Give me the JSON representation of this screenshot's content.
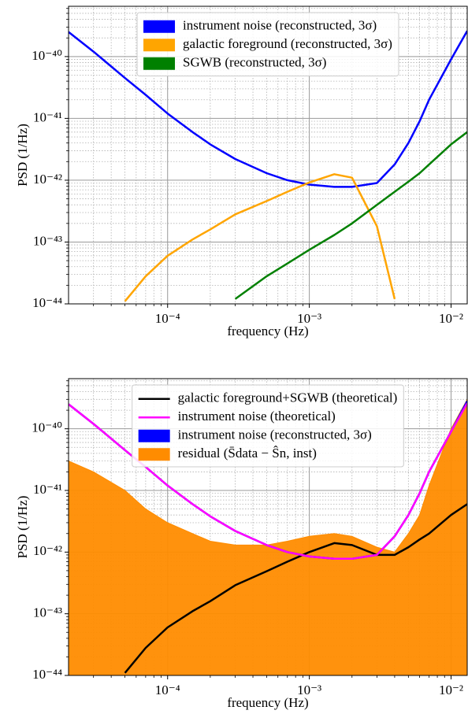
{
  "chart_data": [
    {
      "type": "line",
      "xlabel": "frequency (Hz)",
      "ylabel": "PSD (1/Hz)",
      "xscale": "log",
      "yscale": "log",
      "xlim": [
        2e-05,
        0.013
      ],
      "ylim": [
        1e-44,
        6.5e-40
      ],
      "xticks": [
        {
          "value": 0.0001,
          "label": "10⁻⁴"
        },
        {
          "value": 0.001,
          "label": "10⁻³"
        },
        {
          "value": 0.01,
          "label": "10⁻²"
        }
      ],
      "yticks": [
        {
          "value": 1e-44,
          "label": "10⁻⁴⁴"
        },
        {
          "value": 1e-43,
          "label": "10⁻⁴³"
        },
        {
          "value": 1e-42,
          "label": "10⁻⁴²"
        },
        {
          "value": 1e-41,
          "label": "10⁻⁴¹"
        },
        {
          "value": 1e-40,
          "label": "10⁻⁴⁰"
        }
      ],
      "grid": true,
      "legend": "upper center",
      "x": [
        2e-05,
        3e-05,
        5e-05,
        7e-05,
        0.0001,
        0.00015,
        0.0002,
        0.0003,
        0.0005,
        0.0007,
        0.001,
        0.0015,
        0.002,
        0.003,
        0.004,
        0.005,
        0.006,
        0.007,
        0.01,
        0.013
      ],
      "series": [
        {
          "name": "instrument noise (reconstructed, 3σ)",
          "color": "#0000ff",
          "kind": "band",
          "values": [
            2.5e-40,
            1.2e-40,
            4.5e-41,
            2.4e-41,
            1.2e-41,
            6e-42,
            3.8e-42,
            2.2e-42,
            1.3e-42,
            1e-42,
            8.5e-43,
            7.8e-43,
            7.8e-43,
            9e-43,
            1.8e-42,
            4e-42,
            9e-42,
            2e-41,
            9e-41,
            2.6e-40
          ]
        },
        {
          "name": "galactic foreground (reconstructed, 3σ)",
          "color": "#ffa500",
          "kind": "band",
          "values": [
            null,
            null,
            1.1e-44,
            2.8e-44,
            6e-44,
            1.1e-43,
            1.6e-43,
            2.8e-43,
            4.6e-43,
            6.5e-43,
            9.2e-43,
            1.25e-42,
            1.1e-42,
            1.8e-43,
            1.2e-44,
            null,
            null,
            null,
            null,
            null
          ]
        },
        {
          "name": "SGWB (reconstructed, 3σ)",
          "color": "#008000",
          "kind": "band",
          "values": [
            null,
            null,
            null,
            null,
            null,
            null,
            null,
            1.2e-44,
            2.8e-44,
            4.5e-44,
            7.5e-44,
            1.3e-43,
            2e-43,
            4e-43,
            6.5e-43,
            9.5e-43,
            1.3e-42,
            1.8e-42,
            3.8e-42,
            6e-42
          ]
        }
      ]
    },
    {
      "type": "line",
      "xlabel": "frequency (Hz)",
      "ylabel": "PSD (1/Hz)",
      "xscale": "log",
      "yscale": "log",
      "xlim": [
        2e-05,
        0.013
      ],
      "ylim": [
        1e-44,
        6.5e-40
      ],
      "xticks": [
        {
          "value": 0.0001,
          "label": "10⁻⁴"
        },
        {
          "value": 0.001,
          "label": "10⁻³"
        },
        {
          "value": 0.01,
          "label": "10⁻²"
        }
      ],
      "yticks": [
        {
          "value": 1e-44,
          "label": "10⁻⁴⁴"
        },
        {
          "value": 1e-43,
          "label": "10⁻⁴³"
        },
        {
          "value": 1e-42,
          "label": "10⁻⁴²"
        },
        {
          "value": 1e-41,
          "label": "10⁻⁴¹"
        },
        {
          "value": 1e-40,
          "label": "10⁻⁴⁰"
        }
      ],
      "grid": true,
      "legend": "upper center",
      "x": [
        2e-05,
        3e-05,
        5e-05,
        7e-05,
        0.0001,
        0.00015,
        0.0002,
        0.0003,
        0.0005,
        0.0007,
        0.001,
        0.0015,
        0.002,
        0.003,
        0.004,
        0.005,
        0.006,
        0.007,
        0.01,
        0.013
      ],
      "series": [
        {
          "name": "galactic foreground+SGWB (theoretical)",
          "color": "#000000",
          "kind": "line",
          "values": [
            null,
            null,
            1.1e-44,
            2.8e-44,
            6e-44,
            1.1e-43,
            1.6e-43,
            2.9e-43,
            4.9e-43,
            7e-43,
            1e-42,
            1.4e-42,
            1.3e-42,
            9e-43,
            9e-43,
            1.2e-42,
            1.6e-42,
            2e-42,
            4e-42,
            6e-42
          ]
        },
        {
          "name": "instrument noise (theoretical)",
          "color": "#ff00ff",
          "kind": "line",
          "values": [
            2.5e-40,
            1.2e-40,
            4.5e-41,
            2.4e-41,
            1.2e-41,
            6e-42,
            3.8e-42,
            2.2e-42,
            1.3e-42,
            1e-42,
            8.5e-43,
            7.8e-43,
            7.8e-43,
            9e-43,
            1.8e-42,
            4e-42,
            9e-42,
            2e-41,
            9e-41,
            2.6e-40
          ]
        },
        {
          "name": "instrument noise (reconstructed, 3σ)",
          "color": "#0000ff",
          "kind": "band",
          "values": [
            2.5e-40,
            1.2e-40,
            4.5e-41,
            2.4e-41,
            1.2e-41,
            6e-42,
            3.8e-42,
            2.2e-42,
            1.3e-42,
            1e-42,
            8.5e-43,
            7.8e-43,
            7.8e-43,
            9e-43,
            1.8e-42,
            4e-42,
            9e-42,
            2e-41,
            9e-41,
            2.8e-40
          ]
        },
        {
          "name": "residual (S̄data − Ŝn, inst)",
          "color": "#ff8c00",
          "kind": "area",
          "values": [
            3e-41,
            2e-41,
            1e-41,
            5e-42,
            3e-42,
            2e-42,
            1.5e-42,
            1.3e-42,
            1.3e-42,
            1.5e-42,
            1.8e-42,
            2e-42,
            1.8e-42,
            1.2e-42,
            1e-42,
            2e-42,
            4e-42,
            1.2e-41,
            1e-40,
            3e-40
          ]
        }
      ]
    }
  ]
}
